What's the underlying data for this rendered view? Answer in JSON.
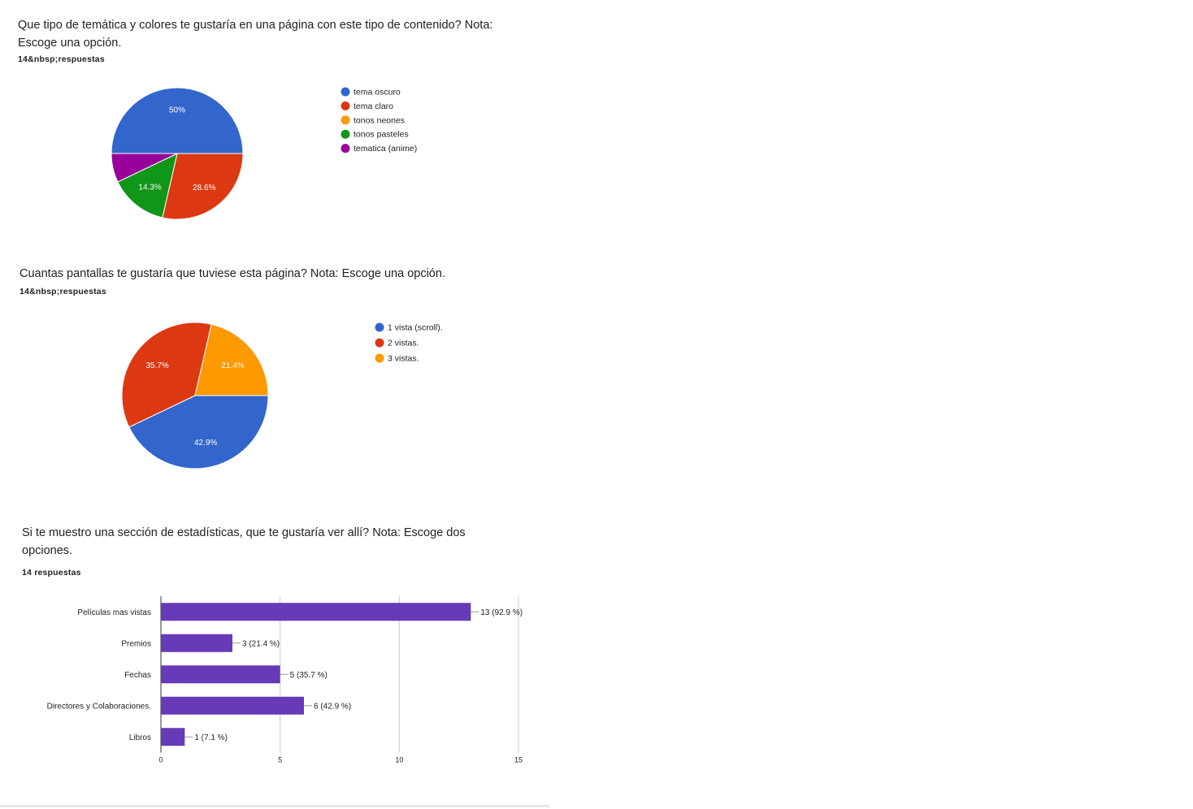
{
  "questions": [
    {
      "title_line1": "Que tipo de temática y colores te gustaría en una página con este tipo de contenido? Nota:",
      "title_line2": "Escoge una opción.",
      "count": "14&nbsp;respuestas"
    },
    {
      "title_line1": "Cuantas pantallas te gustaría que tuviese esta página? Nota: Escoge una opción.",
      "count": "14&nbsp;respuestas"
    },
    {
      "title_line1": "Si te muestro una sección de estadísticas, que te gustaría ver allí? Nota: Escoge dos",
      "title_line2": "opciones.",
      "count": "14 respuestas"
    }
  ],
  "chart_data": [
    {
      "type": "pie",
      "slices": [
        {
          "label": "tema oscuro",
          "value": 50,
          "display": "50%",
          "color": "#3366cc"
        },
        {
          "label": "tema claro",
          "value": 28.6,
          "display": "28.6%",
          "color": "#dc3912"
        },
        {
          "label": "tonos neones",
          "value": 0,
          "display": "",
          "color": "#ff9900"
        },
        {
          "label": "tonos pasteles",
          "value": 14.3,
          "display": "14.3%",
          "color": "#109618"
        },
        {
          "label": "tematica (anime)",
          "value": 7.1,
          "display": "",
          "color": "#990099"
        }
      ]
    },
    {
      "type": "pie",
      "slices": [
        {
          "label": "1 vista (scroll).",
          "value": 42.9,
          "display": "42.9%",
          "color": "#3366cc"
        },
        {
          "label": "2 vistas.",
          "value": 35.7,
          "display": "35.7%",
          "color": "#dc3912"
        },
        {
          "label": "3 vistas.",
          "value": 21.4,
          "display": "21.4%",
          "color": "#ff9900"
        }
      ]
    },
    {
      "type": "bar",
      "orientation": "horizontal",
      "categories": [
        "Películas mas vistas",
        "Premios",
        "Fechas",
        "Directores y Colaboraciones.",
        "Libros"
      ],
      "values": [
        13,
        3,
        5,
        6,
        1
      ],
      "value_labels": [
        "13 (92.9 %)",
        "3 (21.4 %)",
        "5 (35.7 %)",
        "6 (42.9 %)",
        "1 (7.1 %)"
      ],
      "xlim": [
        0,
        15
      ],
      "xticks": [
        "0",
        "5",
        "10",
        "15"
      ],
      "bar_color": "#673ab7"
    }
  ]
}
